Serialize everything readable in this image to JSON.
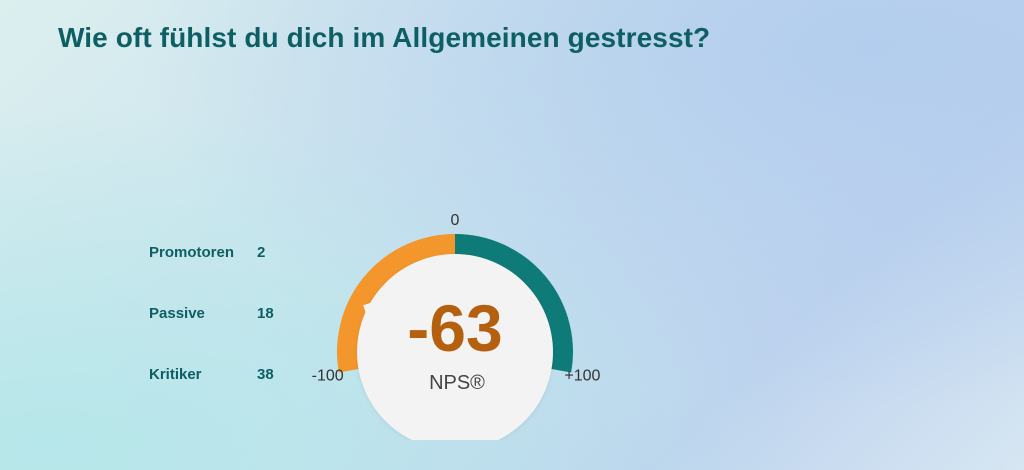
{
  "title": "Wie oft fühlst du dich im Allgemeinen gestresst?",
  "stats": [
    {
      "label": "Promotoren",
      "value": "2"
    },
    {
      "label": "Passive",
      "value": "18"
    },
    {
      "label": "Kritiker",
      "value": "38"
    }
  ],
  "chart_data": {
    "type": "gauge",
    "metric_label": "NPS®",
    "value": -63,
    "value_text": "-63",
    "min": -100,
    "max": 100,
    "tick_labels": {
      "min": "-100",
      "mid": "0",
      "max": "+100"
    },
    "colors": {
      "negative": "#f3962c",
      "positive": "#0f7b78",
      "value_text": "#b5600e",
      "center_fill": "#f3f3f3"
    }
  }
}
